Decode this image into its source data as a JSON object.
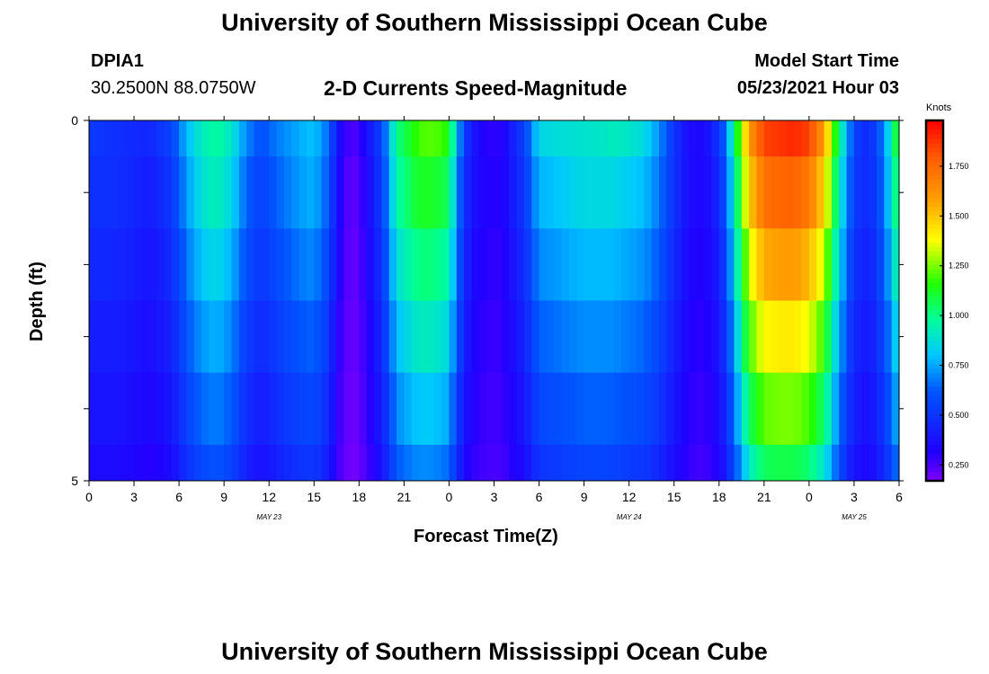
{
  "header": {
    "title_top": "University of Southern Mississippi Ocean Cube",
    "station_id": "DPIA1",
    "station_coords": "30.2500N  88.0750W",
    "subtitle": "2-D Currents Speed-Magnitude",
    "model_start_label": "Model Start Time",
    "model_start_value": "05/23/2021 Hour 03"
  },
  "footer": {
    "title_bottom": "University of Southern Mississippi Ocean Cube"
  },
  "chart_data": {
    "type": "heatmap",
    "title": "2-D Currents Speed-Magnitude",
    "xlabel": "Forecast Time(Z)",
    "ylabel": "Depth (ft)",
    "x_hours_since_0Z_may23": [
      0,
      54
    ],
    "ylim": [
      0,
      5
    ],
    "x_tick_labels": [
      "0",
      "3",
      "6",
      "9",
      "12",
      "15",
      "18",
      "21",
      "0",
      "3",
      "6",
      "9",
      "12",
      "15",
      "18",
      "21",
      "0",
      "3",
      "6"
    ],
    "y_tick_labels": [
      "0",
      "5"
    ],
    "date_labels": [
      {
        "text": "MAY 23",
        "hour": 12
      },
      {
        "text": "MAY 24",
        "hour": 36
      },
      {
        "text": "MAY 25",
        "hour": 51
      }
    ],
    "colorbar": {
      "unit": "Knots",
      "min": 0.17,
      "max": 1.98,
      "ticks": [
        "0.250",
        "0.500",
        "0.750",
        "1.000",
        "1.250",
        "1.500",
        "1.750"
      ],
      "tick_values": [
        0.25,
        0.5,
        0.75,
        1.0,
        1.25,
        1.5,
        1.75
      ]
    },
    "depth_layers_ft": [
      0.0,
      0.5,
      1.5,
      2.5,
      3.5,
      4.5,
      5.0
    ],
    "speed_profile_hours": [
      0,
      1,
      2,
      4,
      5.5,
      6.5,
      7.5,
      8.5,
      9.5,
      10.5,
      11.5,
      12.5,
      14,
      15,
      16,
      16.5,
      17,
      17.5,
      18,
      18.5,
      19.5,
      20.5,
      22,
      23,
      24,
      24.5,
      25,
      25.5,
      26.5,
      27.5,
      29,
      30,
      32,
      34,
      35,
      36,
      37,
      38,
      39,
      40,
      41,
      42,
      42.5,
      43,
      43.5,
      44,
      45,
      47,
      48,
      49,
      50,
      51,
      52,
      53,
      53.5,
      54
    ],
    "speed_profile_knots": [
      0.52,
      0.5,
      0.48,
      0.45,
      0.56,
      0.78,
      0.92,
      0.98,
      0.9,
      0.7,
      0.6,
      0.68,
      0.76,
      0.8,
      0.65,
      0.4,
      0.3,
      0.24,
      0.27,
      0.36,
      0.55,
      1.0,
      1.2,
      1.22,
      1.15,
      0.8,
      0.55,
      0.4,
      0.3,
      0.3,
      0.55,
      0.85,
      0.88,
      0.9,
      0.92,
      0.9,
      0.86,
      0.72,
      0.5,
      0.35,
      0.34,
      0.5,
      0.7,
      1.0,
      1.3,
      1.6,
      1.85,
      1.9,
      1.85,
      1.6,
      1.0,
      0.55,
      0.45,
      0.7,
      0.95,
      1.2
    ],
    "depth_factors": [
      1.0,
      0.92,
      0.82,
      0.72,
      0.62,
      0.52
    ]
  }
}
